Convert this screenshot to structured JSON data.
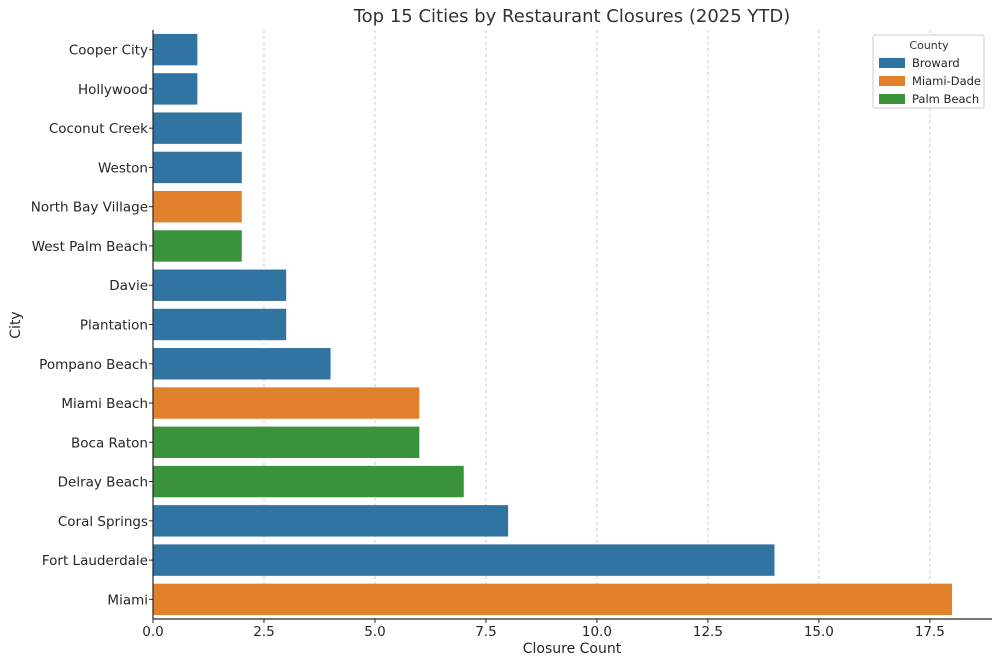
{
  "chart_data": {
    "type": "bar",
    "orientation": "horizontal",
    "title": "Top 15 Cities by Restaurant Closures (2025 YTD)",
    "xlabel": "Closure Count",
    "ylabel": "City",
    "xlim": [
      0,
      18.9
    ],
    "xticks": [
      "0.0",
      "2.5",
      "5.0",
      "7.5",
      "10.0",
      "12.5",
      "15.0",
      "17.5"
    ],
    "xtick_values": [
      0,
      2.5,
      5,
      7.5,
      10,
      12.5,
      15,
      17.5
    ],
    "grid": "vertical dashed",
    "legend": {
      "title": "County",
      "placement": "top-right",
      "entries": [
        {
          "name": "Broward",
          "color": "#3274a1"
        },
        {
          "name": "Miami-Dade",
          "color": "#e1812c"
        },
        {
          "name": "Palm Beach",
          "color": "#3a923a"
        }
      ]
    },
    "categories": [
      "Cooper City",
      "Hollywood",
      "Coconut Creek",
      "Weston",
      "North Bay Village",
      "West Palm Beach",
      "Davie",
      "Plantation",
      "Pompano Beach",
      "Miami Beach",
      "Boca Raton",
      "Delray Beach",
      "Coral Springs",
      "Fort Lauderdale",
      "Miami"
    ],
    "values": [
      1,
      1,
      2,
      2,
      2,
      2,
      3,
      3,
      4,
      6,
      6,
      7,
      8,
      14,
      18
    ],
    "county": [
      "Broward",
      "Broward",
      "Broward",
      "Broward",
      "Miami-Dade",
      "Palm Beach",
      "Broward",
      "Broward",
      "Broward",
      "Miami-Dade",
      "Palm Beach",
      "Palm Beach",
      "Broward",
      "Broward",
      "Miami-Dade"
    ]
  }
}
